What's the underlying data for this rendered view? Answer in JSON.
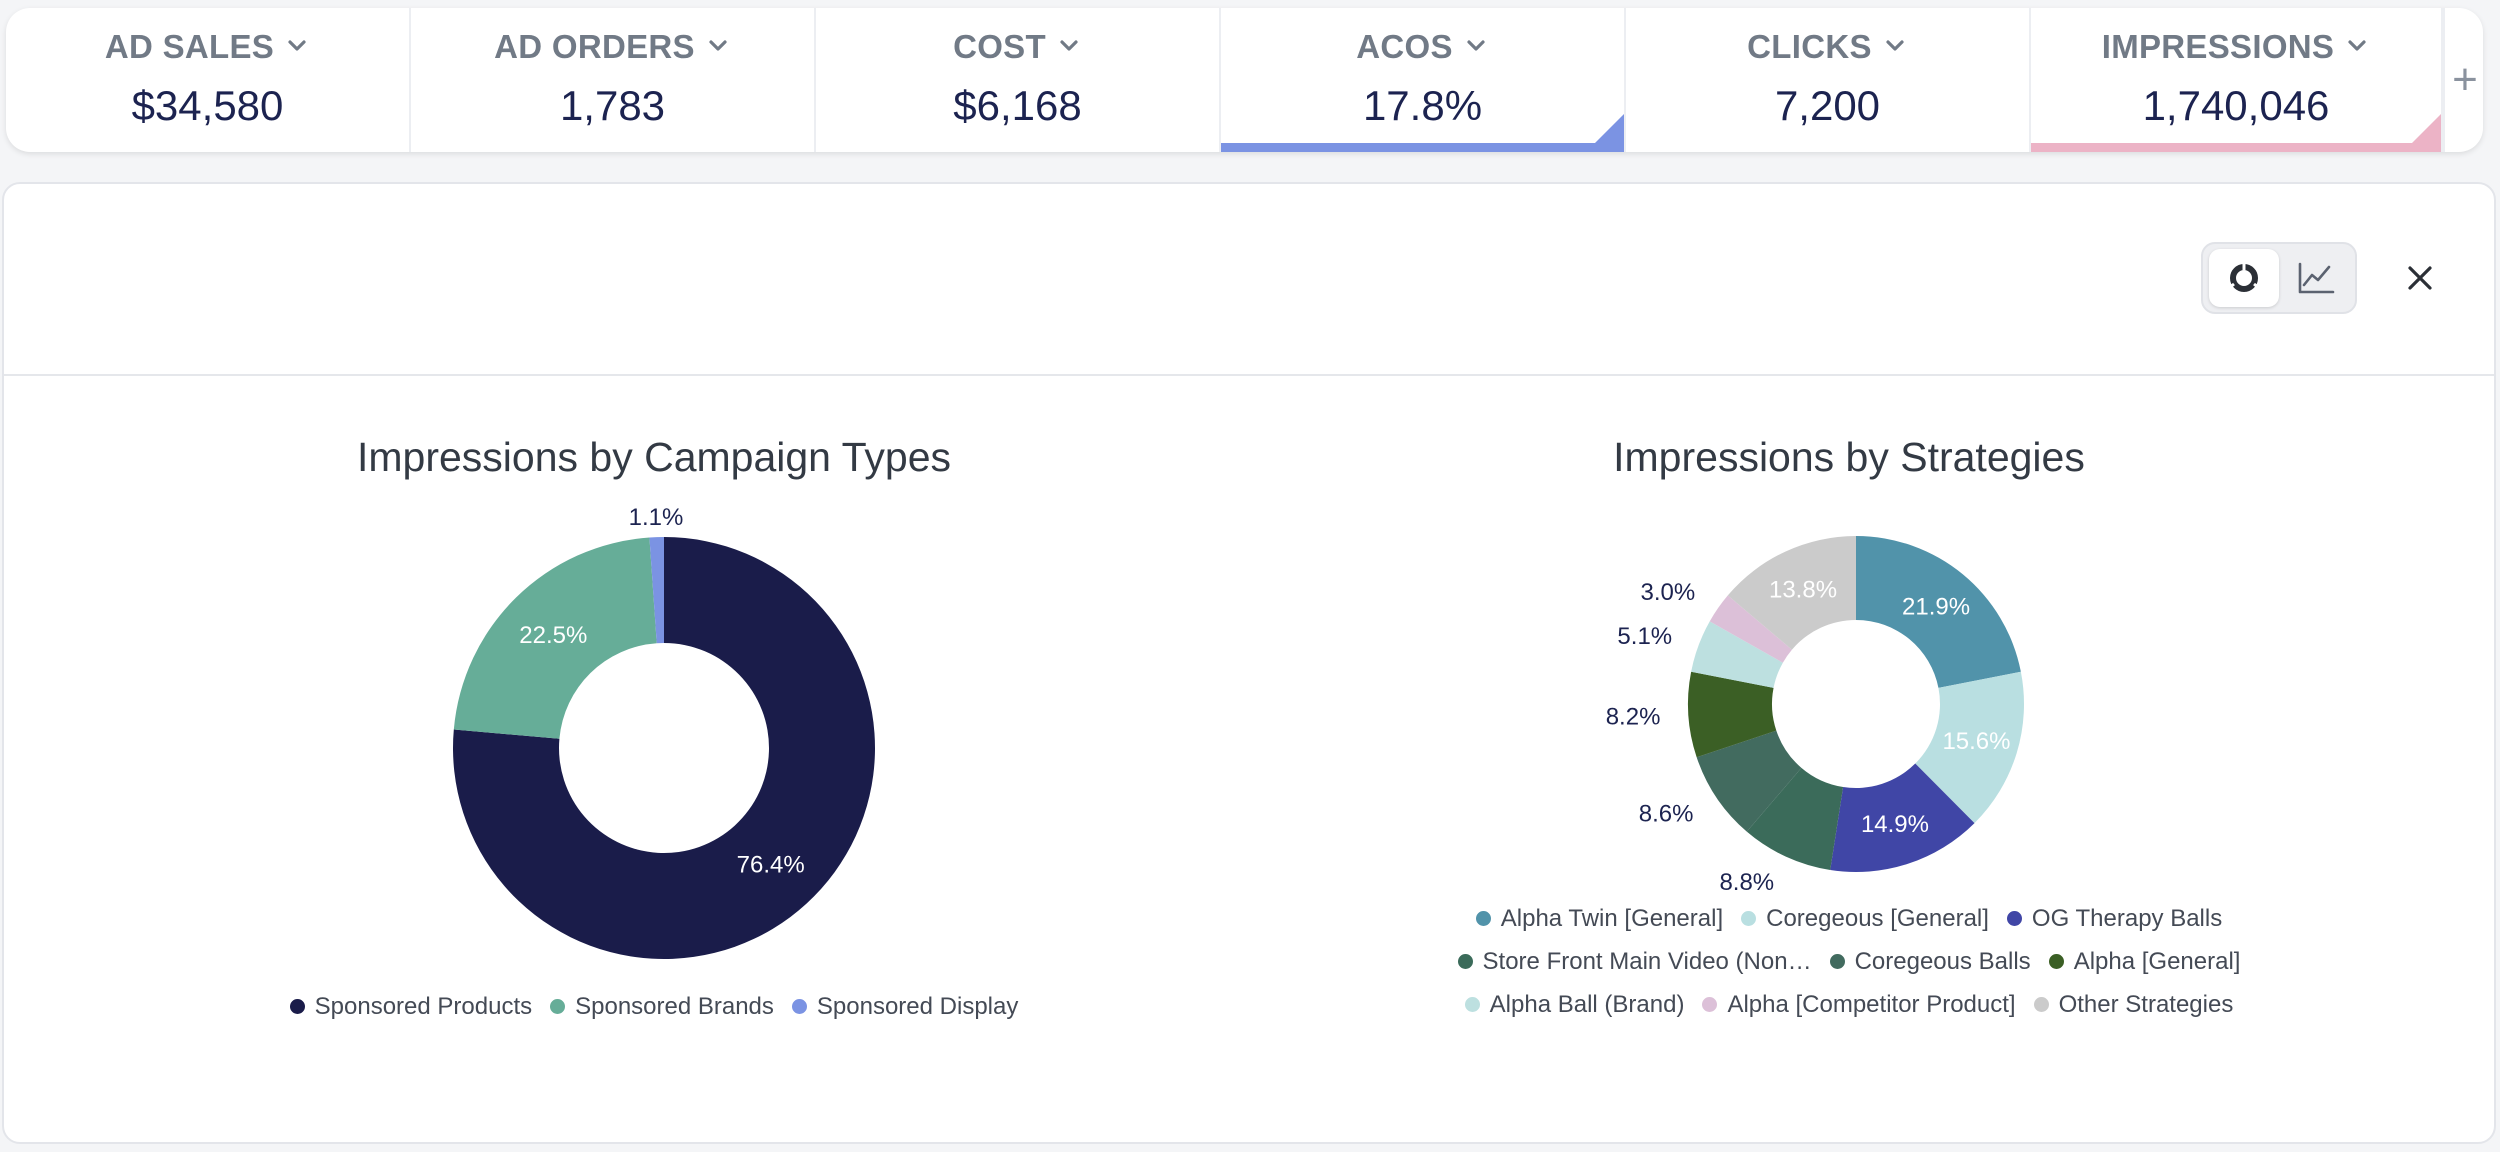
{
  "metrics": [
    {
      "label": "AD SALES",
      "value": "$34,580",
      "selected": false
    },
    {
      "label": "AD ORDERS",
      "value": "1,783",
      "selected": false
    },
    {
      "label": "COST",
      "value": "$6,168",
      "selected": false
    },
    {
      "label": "ACOS",
      "value": "17.8%",
      "selected": true,
      "accent": "#7b93e3"
    },
    {
      "label": "CLICKS",
      "value": "7,200",
      "selected": false
    },
    {
      "label": "IMPRESSIONS",
      "value": "1,740,046",
      "selected": true,
      "accent": "#ecb3c6"
    }
  ],
  "add_metric_label": "+",
  "toolbar": {
    "pie_view_icon": "pie-chart-icon",
    "line_view_icon": "line-chart-icon",
    "close_icon": "close-icon",
    "active_view": "pie"
  },
  "colors": {
    "metric_label": "#717a86",
    "metric_value": "#1c2350"
  },
  "chart_data": [
    {
      "type": "pie",
      "donut": true,
      "title": "Impressions by Campaign Types",
      "slices": [
        {
          "name": "Sponsored Products",
          "value": 76.4,
          "label": "76.4%",
          "color": "#1a1c4a"
        },
        {
          "name": "Sponsored Brands",
          "value": 22.5,
          "label": "22.5%",
          "color": "#66ad98"
        },
        {
          "name": "Sponsored Display",
          "value": 1.1,
          "label": "1.1%",
          "color": "#7b93e3"
        }
      ],
      "legend_position": "bottom"
    },
    {
      "type": "pie",
      "donut": true,
      "title": "Impressions by Strategies",
      "slices": [
        {
          "name": "Alpha Twin [General]",
          "value": 21.9,
          "label": "21.9%",
          "color": "#5193aa"
        },
        {
          "name": "Coregeous [General]",
          "value": 15.6,
          "label": "15.6%",
          "color": "#b9dfe1"
        },
        {
          "name": "OG Therapy Balls",
          "value": 14.9,
          "label": "14.9%",
          "color": "#4046a6"
        },
        {
          "name": "Store Front Main Video (Non…",
          "value": 8.8,
          "label": "8.8%",
          "color": "#3b6b5a"
        },
        {
          "name": "Coregeous Balls",
          "value": 8.6,
          "label": "8.6%",
          "color": "#426b5f"
        },
        {
          "name": "Alpha [General]",
          "value": 8.2,
          "label": "8.2%",
          "color": "#3b5f25"
        },
        {
          "name": "Alpha Ball (Brand)",
          "value": 5.1,
          "label": "5.1%",
          "color": "#bde0e0"
        },
        {
          "name": "Alpha [Competitor Product]",
          "value": 3.0,
          "label": "3.0%",
          "color": "#dcc0d8"
        },
        {
          "name": "Other Strategies",
          "value": 13.8,
          "label": "13.8%",
          "color": "#cbcbcb"
        }
      ],
      "legend_position": "bottom"
    }
  ]
}
